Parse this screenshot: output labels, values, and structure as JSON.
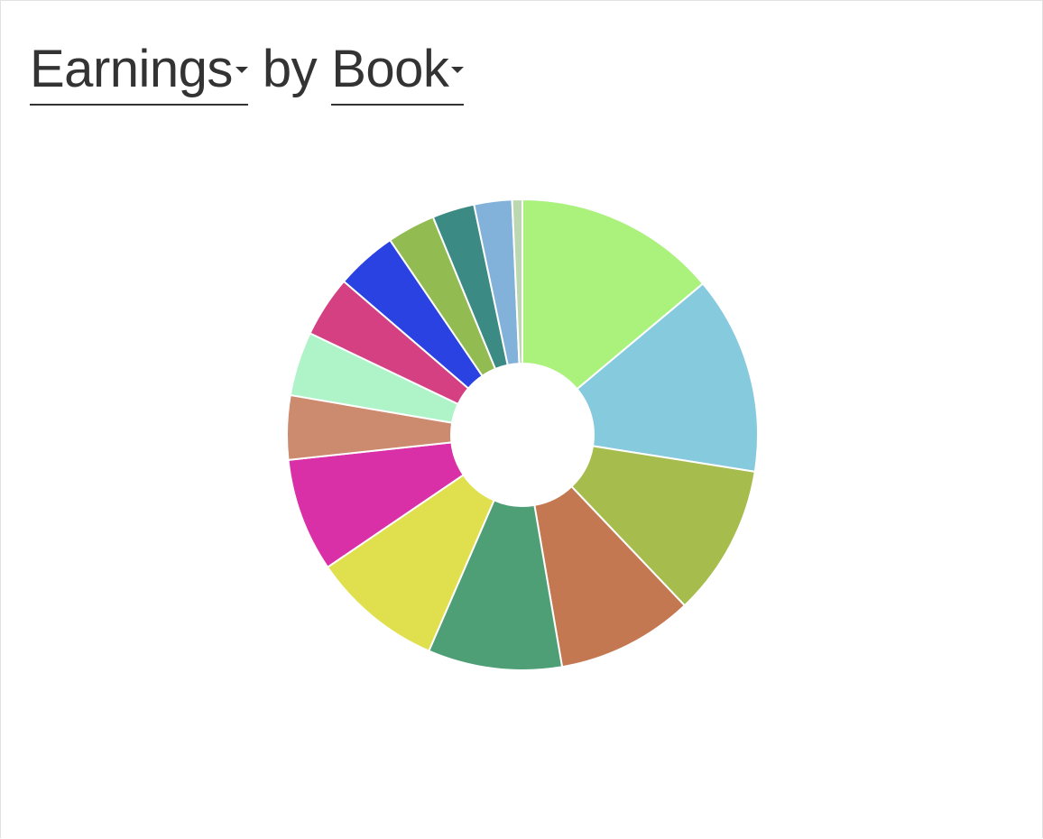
{
  "header": {
    "metric_label": "Earnings",
    "connector_label": "by",
    "dimension_label": "Book"
  },
  "chart_data": {
    "type": "pie",
    "donut": true,
    "title": "",
    "legend": "none",
    "categories": [
      "",
      "",
      "",
      "",
      "",
      "",
      "",
      "",
      "",
      "",
      "",
      "",
      "",
      "",
      ""
    ],
    "values": [
      13.9,
      13.6,
      10.4,
      9.4,
      9.2,
      9.0,
      7.8,
      4.4,
      4.4,
      4.2,
      4.2,
      3.3,
      2.9,
      2.6,
      0.7
    ],
    "colors": [
      "#aaf27b",
      "#86cade",
      "#a6bc4c",
      "#c47852",
      "#4e9e76",
      "#e0e04e",
      "#d930a8",
      "#cc8a6e",
      "#aef4c8",
      "#d44082",
      "#2b42e2",
      "#92bc52",
      "#3c8a84",
      "#82b2da",
      "#bcd8b0"
    ]
  }
}
